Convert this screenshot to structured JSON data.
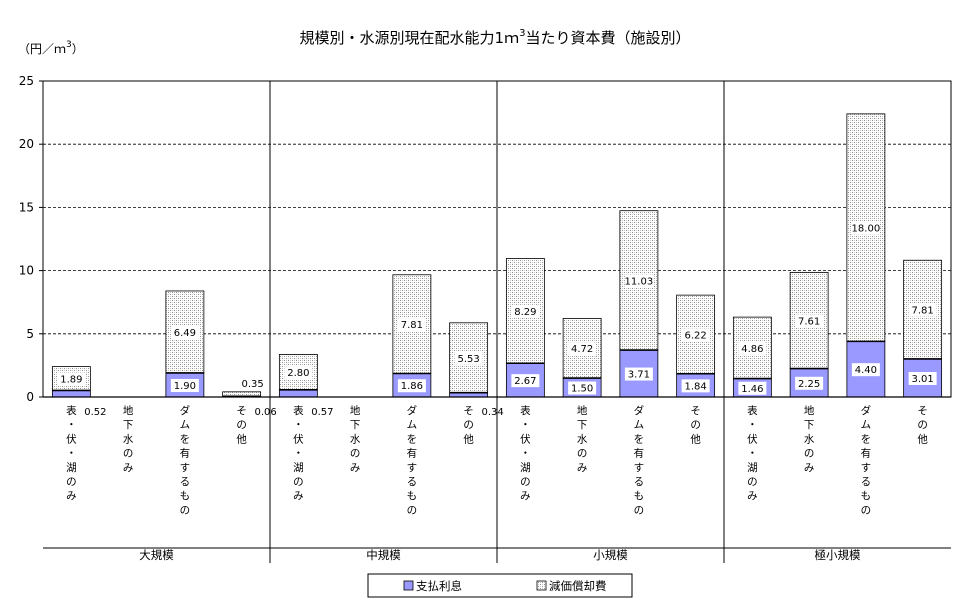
{
  "chart_data": {
    "type": "bar",
    "stacked": true,
    "title_main": "規模別・水源別現在配水能力1ｍ",
    "title_sup": "3",
    "title_tail": "当たり資本費（施設別）",
    "unit_main": "（円／ｍ",
    "unit_sup": "3",
    "unit_tail": "）",
    "ylim": [
      0,
      25
    ],
    "yticks": [
      "0",
      "5",
      "10",
      "15",
      "20",
      "25"
    ],
    "grid": true,
    "legend_position": "bottom-center",
    "colors": {
      "interest": "#9999ff",
      "depreciation_pattern": "#c0c0c0",
      "axis": "#000000",
      "grid": "#000000"
    },
    "series": [
      {
        "key": "interest",
        "name": "支払利息"
      },
      {
        "key": "depreciation",
        "name": "減価償却費"
      }
    ],
    "groups": [
      {
        "name": "大規模",
        "bars": [
          {
            "category": "表・伏・湖のみ",
            "interest": 0.52,
            "depreciation": 1.89,
            "interest_label": "0.52",
            "depreciation_label": "1.89"
          },
          {
            "category": "地下水のみ",
            "interest": 0,
            "depreciation": 0,
            "interest_label": "",
            "depreciation_label": ""
          },
          {
            "category": "ダムを有するもの",
            "interest": 1.9,
            "depreciation": 6.49,
            "interest_label": "1.90",
            "depreciation_label": "6.49"
          },
          {
            "category": "その他",
            "interest": 0.06,
            "depreciation": 0.35,
            "interest_label": "0.06",
            "depreciation_label": "0.35"
          }
        ]
      },
      {
        "name": "中規模",
        "bars": [
          {
            "category": "表・伏・湖のみ",
            "interest": 0.57,
            "depreciation": 2.8,
            "interest_label": "0.57",
            "depreciation_label": "2.80"
          },
          {
            "category": "地下水のみ",
            "interest": 0,
            "depreciation": 0,
            "interest_label": "",
            "depreciation_label": ""
          },
          {
            "category": "ダムを有するもの",
            "interest": 1.86,
            "depreciation": 7.81,
            "interest_label": "1.86",
            "depreciation_label": "7.81"
          },
          {
            "category": "その他",
            "interest": 0.34,
            "depreciation": 5.53,
            "interest_label": "0.34",
            "depreciation_label": "5.53"
          }
        ]
      },
      {
        "name": "小規模",
        "bars": [
          {
            "category": "表・伏・湖のみ",
            "interest": 2.67,
            "depreciation": 8.29,
            "interest_label": "2.67",
            "depreciation_label": "8.29"
          },
          {
            "category": "地下水のみ",
            "interest": 1.5,
            "depreciation": 4.72,
            "interest_label": "1.50",
            "depreciation_label": "4.72"
          },
          {
            "category": "ダムを有するもの",
            "interest": 3.71,
            "depreciation": 11.03,
            "interest_label": "3.71",
            "depreciation_label": "11.03"
          },
          {
            "category": "その他",
            "interest": 1.84,
            "depreciation": 6.22,
            "interest_label": "1.84",
            "depreciation_label": "6.22"
          }
        ]
      },
      {
        "name": "極小規模",
        "bars": [
          {
            "category": "表・伏・湖のみ",
            "interest": 1.46,
            "depreciation": 4.86,
            "interest_label": "1.46",
            "depreciation_label": "4.86"
          },
          {
            "category": "地下水のみ",
            "interest": 2.25,
            "depreciation": 7.61,
            "interest_label": "2.25",
            "depreciation_label": "7.61"
          },
          {
            "category": "ダムを有するもの",
            "interest": 4.4,
            "depreciation": 18.0,
            "interest_label": "4.40",
            "depreciation_label": "18.00"
          },
          {
            "category": "その他",
            "interest": 3.01,
            "depreciation": 7.81,
            "interest_label": "3.01",
            "depreciation_label": "7.81"
          }
        ]
      }
    ]
  }
}
